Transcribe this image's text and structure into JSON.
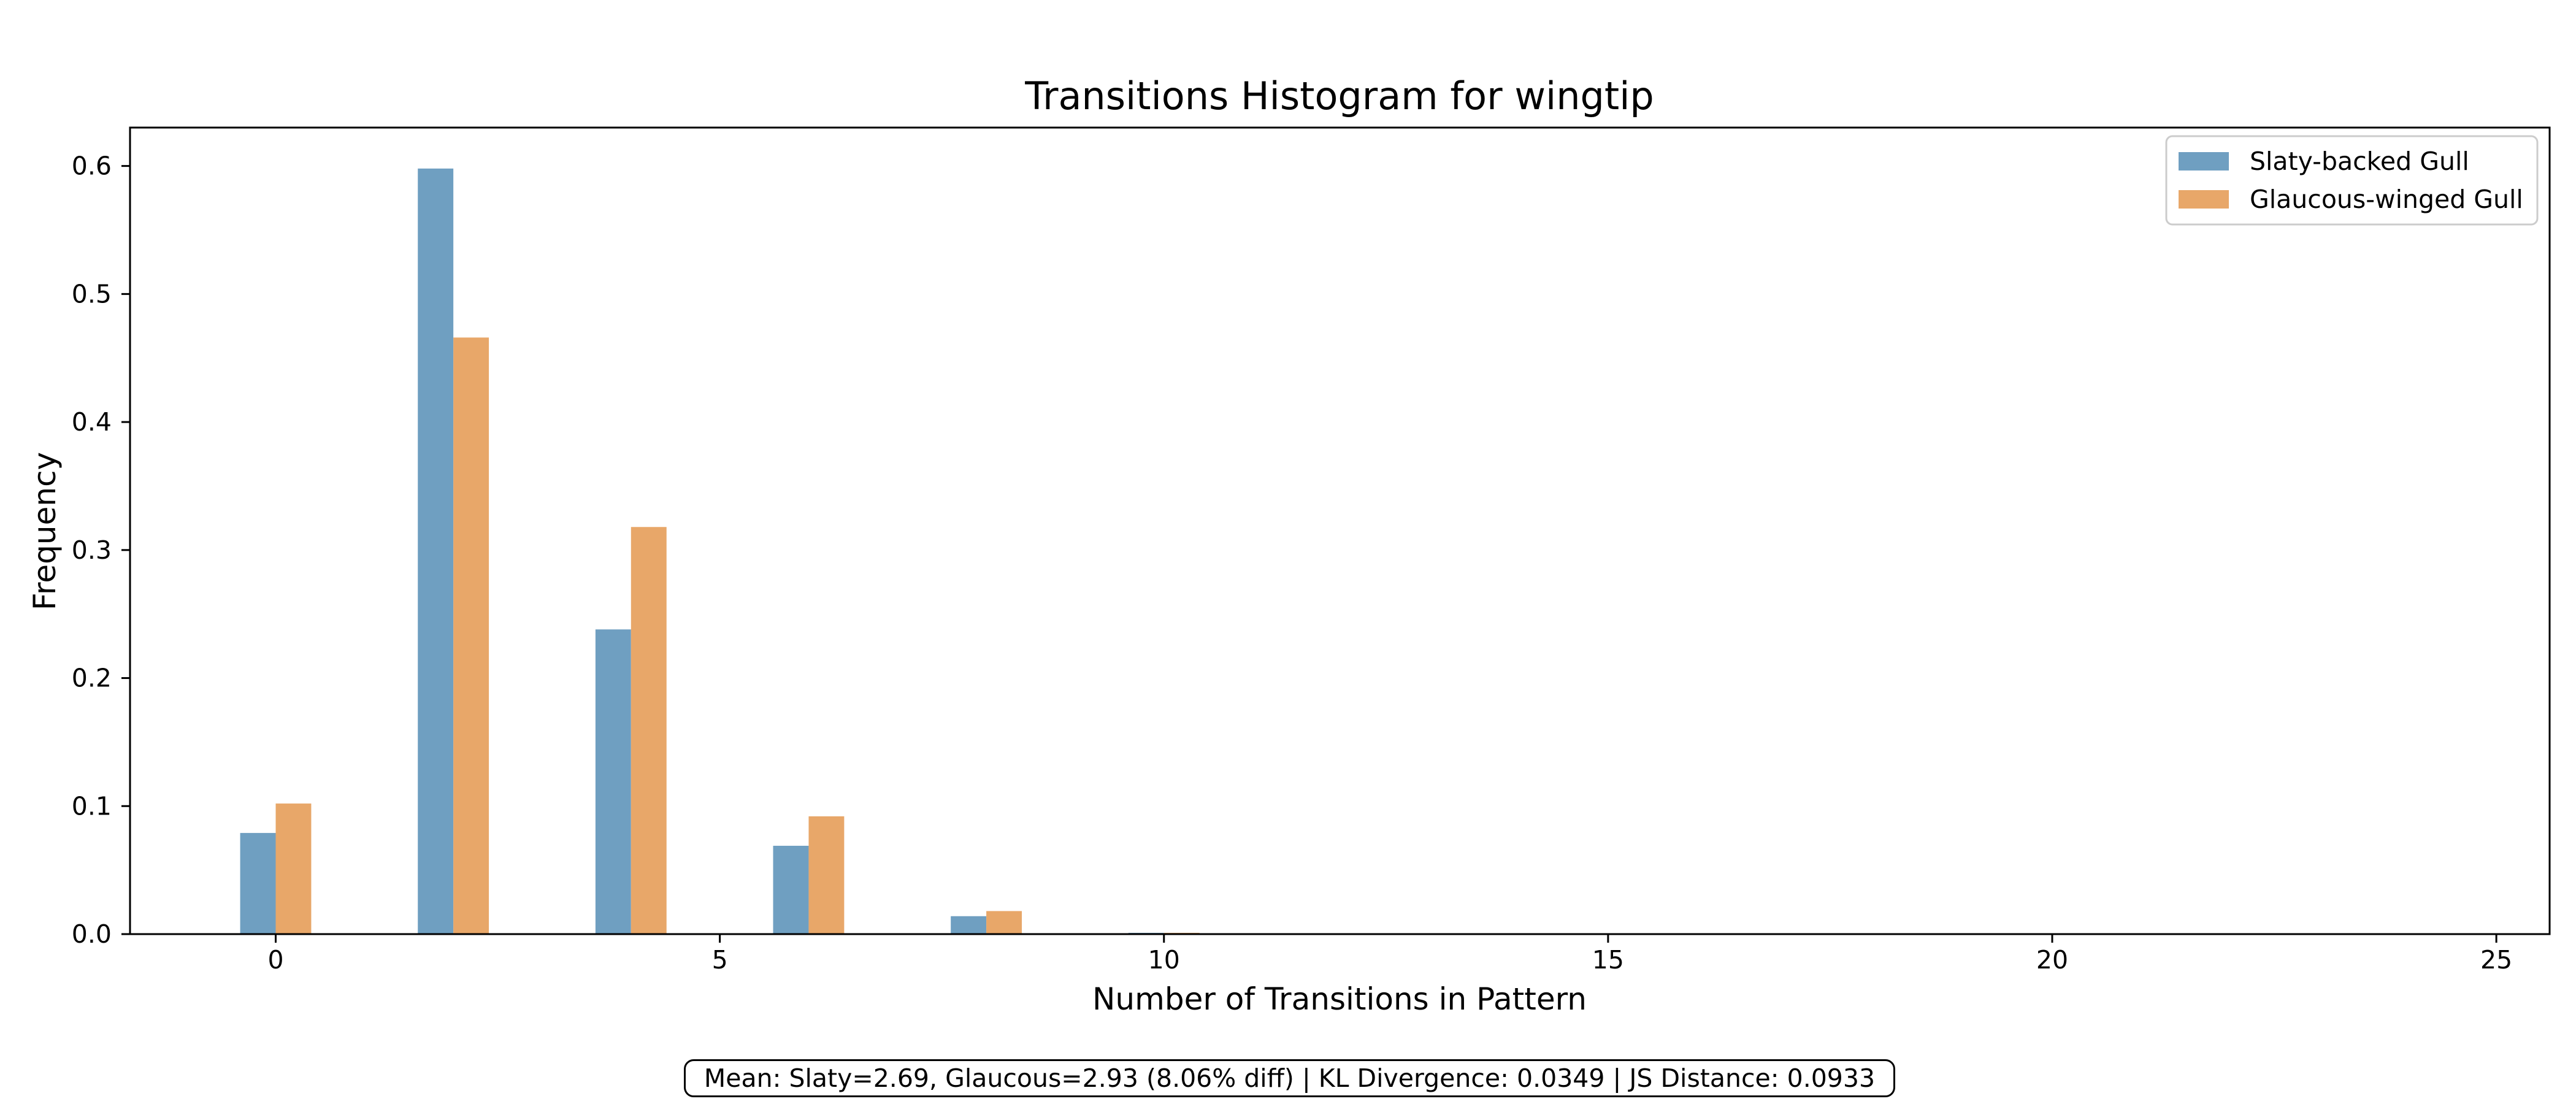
{
  "chart_data": {
    "type": "bar",
    "title": "Transitions Histogram for wingtip",
    "xlabel": "Number of Transitions in Pattern",
    "ylabel": "Frequency",
    "xlim": [
      -1.64,
      25.6
    ],
    "ylim": [
      0.0,
      0.63
    ],
    "xticks": [
      0,
      5,
      10,
      15,
      20,
      25
    ],
    "yticks": [
      0.0,
      0.1,
      0.2,
      0.3,
      0.4,
      0.5,
      0.6
    ],
    "x": [
      0,
      2,
      4,
      6,
      8,
      10
    ],
    "series": [
      {
        "name": "Slaty-backed Gull",
        "color": "#6f9fc1",
        "values": [
          0.079,
          0.598,
          0.238,
          0.069,
          0.014,
          0.001
        ]
      },
      {
        "name": "Glaucous-winged Gull",
        "color": "#e8a769",
        "values": [
          0.102,
          0.466,
          0.318,
          0.092,
          0.018,
          0.001
        ]
      }
    ],
    "legend_position": "top-right",
    "grid": false,
    "annotation": "Mean: Slaty=2.69, Glaucous=2.93 (8.06% diff) | KL Divergence: 0.0349 | JS Distance: 0.0933"
  }
}
